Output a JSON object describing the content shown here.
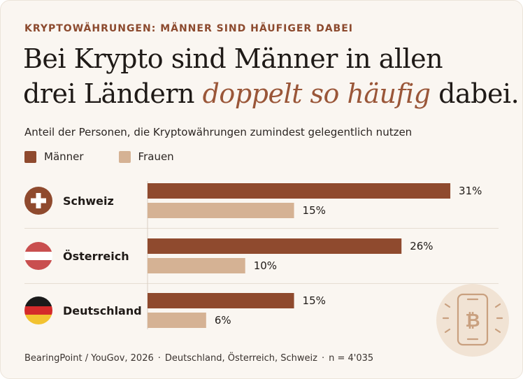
{
  "kicker": "KRYPTOWÄHRUNGEN: MÄNNER SIND HÄUFIGER DABEI",
  "headline": {
    "line1": "Bei Krypto sind Männer in allen",
    "line2_pre": "drei Ländern ",
    "line2_em": "doppelt so häufig",
    "line2_post": " dabei."
  },
  "colors": {
    "men": "#8f4a2e",
    "women": "#d5b294",
    "background": "#faf6f1"
  },
  "chart_data": {
    "type": "bar",
    "orientation": "horizontal",
    "title": "Bei Krypto sind Männer in allen drei Ländern doppelt so häufig dabei.",
    "subtitle": "Anteil der Personen, die Kryptowährungen zumindest gelegentlich nutzen",
    "categories": [
      "Schweiz",
      "Österreich",
      "Deutschland"
    ],
    "series": [
      {
        "name": "Männer",
        "values": [
          31,
          26,
          15
        ],
        "labels": [
          "31%",
          "26%",
          "15%"
        ]
      },
      {
        "name": "Frauen",
        "values": [
          15,
          10,
          6
        ],
        "labels": [
          "15%",
          "10%",
          "6%"
        ]
      }
    ],
    "unit": "%",
    "xlim": [
      0,
      33
    ],
    "legend": "top-left",
    "grid": false
  },
  "countries": [
    {
      "name": "Schweiz",
      "flag": "swiss-flag-icon"
    },
    {
      "name": "Österreich",
      "flag": "austria-flag-icon"
    },
    {
      "name": "Deutschland",
      "flag": "germany-flag-icon"
    }
  ],
  "footer": {
    "source": "BearingPoint / YouGov, 2026",
    "countries": "Deutschland, Österreich, Schweiz",
    "sample": "n = 4'035",
    "separator": "·"
  },
  "decor": {
    "icon": "bitcoin-phone-icon"
  }
}
